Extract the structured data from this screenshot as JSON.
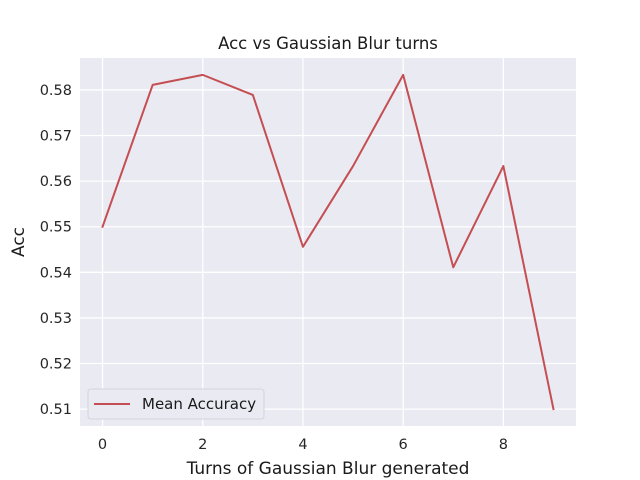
{
  "chart_data": {
    "type": "line",
    "title": "Acc vs Gaussian Blur turns",
    "xlabel": "Turns of Gaussian Blur generated",
    "ylabel": "Acc",
    "x": [
      0,
      1,
      2,
      3,
      4,
      5,
      6,
      7,
      8,
      9
    ],
    "series": [
      {
        "name": "Mean Accuracy",
        "values": [
          0.55,
          0.5811,
          0.5833,
          0.5789,
          0.5456,
          0.5633,
          0.5833,
          0.5411,
          0.5633,
          0.51
        ],
        "color": "#c44e52"
      }
    ],
    "xticks": [
      "0",
      "2",
      "4",
      "6",
      "8"
    ],
    "xtick_values": [
      0,
      2,
      4,
      6,
      8
    ],
    "yticks": [
      "0.51",
      "0.52",
      "0.53",
      "0.54",
      "0.55",
      "0.56",
      "0.57",
      "0.58"
    ],
    "ytick_values": [
      0.51,
      0.52,
      0.53,
      0.54,
      0.55,
      0.56,
      0.57,
      0.58
    ],
    "xlim": [
      -0.45,
      9.45
    ],
    "ylim": [
      0.5063,
      0.587
    ],
    "grid": true,
    "legend_position": "lower-left",
    "background_color": "#eaeaf2",
    "grid_color": "#ffffff"
  }
}
